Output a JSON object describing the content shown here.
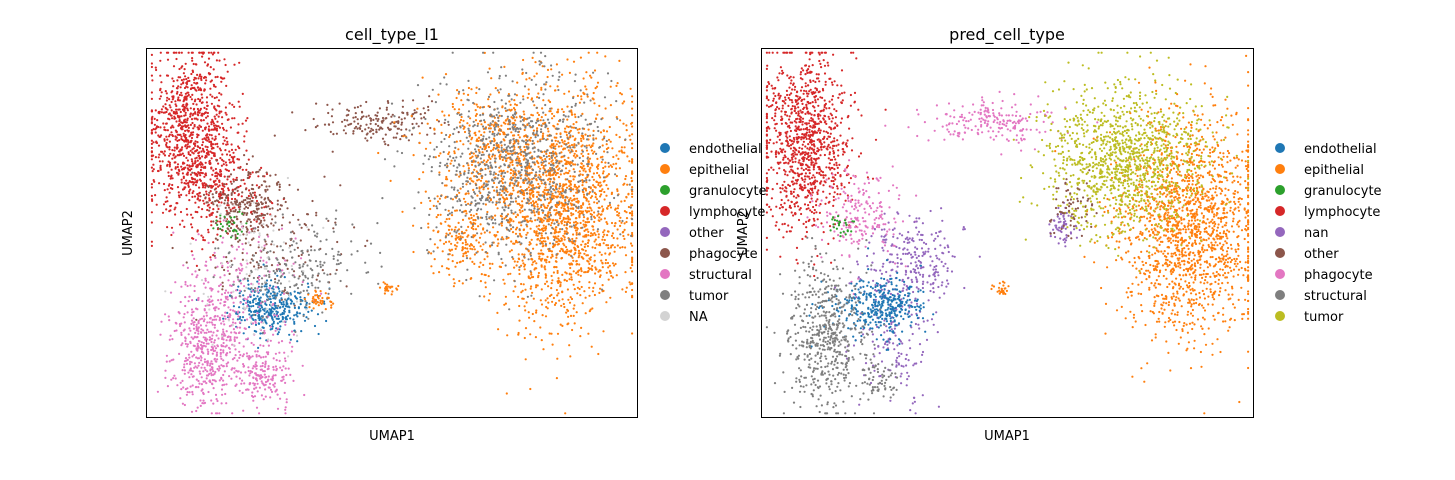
{
  "chart_data": [
    {
      "type": "scatter",
      "title": "cell_type_l1",
      "xlabel": "UMAP1",
      "ylabel": "UMAP2",
      "xlim": [
        0,
        100
      ],
      "ylim": [
        0,
        100
      ],
      "grid": false,
      "legend_position": "right-outside",
      "legend": [
        {
          "label": "endothelial",
          "color": "#1f77b4"
        },
        {
          "label": "epithelial",
          "color": "#ff7f0e"
        },
        {
          "label": "granulocyte",
          "color": "#2ca02c"
        },
        {
          "label": "lymphocyte",
          "color": "#d62728"
        },
        {
          "label": "other",
          "color": "#9467bd"
        },
        {
          "label": "phagocyte",
          "color": "#8c564b"
        },
        {
          "label": "structural",
          "color": "#e377c2"
        },
        {
          "label": "tumor",
          "color": "#7f7f7f"
        },
        {
          "label": "NA",
          "color": "#d3d3d3"
        }
      ],
      "clusters": [
        {
          "cat": "lymphocyte",
          "cx": 9,
          "cy": 78,
          "sx": 4.5,
          "sy": 11,
          "n": 900
        },
        {
          "cat": "lymphocyte",
          "cx": 15,
          "cy": 62,
          "sx": 5,
          "sy": 6,
          "n": 250
        },
        {
          "cat": "phagocyte",
          "cx": 20,
          "cy": 58,
          "sx": 4,
          "sy": 5,
          "n": 220
        },
        {
          "cat": "phagocyte",
          "cx": 48,
          "cy": 80,
          "sx": 7,
          "sy": 3,
          "n": 180
        },
        {
          "cat": "phagocyte",
          "cx": 25,
          "cy": 48,
          "sx": 8,
          "sy": 8,
          "n": 150
        },
        {
          "cat": "granulocyte",
          "cx": 17,
          "cy": 52,
          "sx": 1.5,
          "sy": 2,
          "n": 30
        },
        {
          "cat": "endothelial",
          "cx": 25,
          "cy": 30,
          "sx": 4,
          "sy": 3.5,
          "n": 350
        },
        {
          "cat": "structural",
          "cx": 12,
          "cy": 18,
          "sx": 3.5,
          "sy": 8,
          "n": 450
        },
        {
          "cat": "structural",
          "cx": 24,
          "cy": 12,
          "sx": 3,
          "sy": 5,
          "n": 200
        },
        {
          "cat": "structural",
          "cx": 18,
          "cy": 35,
          "sx": 6,
          "sy": 8,
          "n": 200
        },
        {
          "cat": "tumor",
          "cx": 30,
          "cy": 40,
          "sx": 8,
          "sy": 6,
          "n": 200
        },
        {
          "cat": "epithelial",
          "cx": 85,
          "cy": 55,
          "sx": 8,
          "sy": 15,
          "n": 1600
        },
        {
          "cat": "epithelial",
          "cx": 74,
          "cy": 72,
          "sx": 9,
          "sy": 10,
          "n": 600
        },
        {
          "cat": "epithelial",
          "cx": 64,
          "cy": 48,
          "sx": 3.5,
          "sy": 5,
          "n": 150
        },
        {
          "cat": "epithelial",
          "cx": 49,
          "cy": 35,
          "sx": 0.8,
          "sy": 0.8,
          "n": 25
        },
        {
          "cat": "epithelial",
          "cx": 35,
          "cy": 32,
          "sx": 1.5,
          "sy": 1.5,
          "n": 40
        },
        {
          "cat": "tumor",
          "cx": 75,
          "cy": 68,
          "sx": 9,
          "sy": 12,
          "n": 900
        },
        {
          "cat": "NA",
          "cx": 22,
          "cy": 40,
          "sx": 6,
          "sy": 10,
          "n": 80
        }
      ]
    },
    {
      "type": "scatter",
      "title": "pred_cell_type",
      "xlabel": "UMAP1",
      "ylabel": "UMAP2",
      "xlim": [
        0,
        100
      ],
      "ylim": [
        0,
        100
      ],
      "grid": false,
      "legend_position": "right-outside",
      "legend": [
        {
          "label": "endothelial",
          "color": "#1f77b4"
        },
        {
          "label": "epithelial",
          "color": "#ff7f0e"
        },
        {
          "label": "granulocyte",
          "color": "#2ca02c"
        },
        {
          "label": "lymphocyte",
          "color": "#d62728"
        },
        {
          "label": "nan",
          "color": "#9467bd"
        },
        {
          "label": "other",
          "color": "#8c564b"
        },
        {
          "label": "phagocyte",
          "color": "#e377c2"
        },
        {
          "label": "structural",
          "color": "#7f7f7f"
        },
        {
          "label": "tumor",
          "color": "#bcbd22"
        }
      ],
      "clusters": [
        {
          "cat": "lymphocyte",
          "cx": 9,
          "cy": 75,
          "sx": 4.5,
          "sy": 12,
          "n": 1000
        },
        {
          "cat": "phagocyte",
          "cx": 46,
          "cy": 80,
          "sx": 7,
          "sy": 3,
          "n": 200
        },
        {
          "cat": "phagocyte",
          "cx": 20,
          "cy": 55,
          "sx": 4,
          "sy": 6,
          "n": 200
        },
        {
          "cat": "nan",
          "cx": 31,
          "cy": 42,
          "sx": 5,
          "sy": 6,
          "n": 260
        },
        {
          "cat": "nan",
          "cx": 27,
          "cy": 20,
          "sx": 4,
          "sy": 8,
          "n": 140
        },
        {
          "cat": "nan",
          "cx": 61,
          "cy": 52,
          "sx": 1.5,
          "sy": 2.5,
          "n": 60
        },
        {
          "cat": "granulocyte",
          "cx": 17,
          "cy": 52,
          "sx": 1.5,
          "sy": 2,
          "n": 25
        },
        {
          "cat": "endothelial",
          "cx": 24,
          "cy": 30,
          "sx": 4.5,
          "sy": 4,
          "n": 380
        },
        {
          "cat": "structural",
          "cx": 13,
          "cy": 22,
          "sx": 4,
          "sy": 10,
          "n": 550
        },
        {
          "cat": "structural",
          "cx": 24,
          "cy": 10,
          "sx": 2,
          "sy": 3,
          "n": 60
        },
        {
          "cat": "epithelial",
          "cx": 87,
          "cy": 52,
          "sx": 7,
          "sy": 15,
          "n": 1600
        },
        {
          "cat": "epithelial",
          "cx": 49,
          "cy": 35,
          "sx": 0.8,
          "sy": 0.8,
          "n": 25
        },
        {
          "cat": "tumor",
          "cx": 74,
          "cy": 70,
          "sx": 8,
          "sy": 10,
          "n": 1200
        },
        {
          "cat": "other",
          "cx": 63,
          "cy": 56,
          "sx": 2.5,
          "sy": 4,
          "n": 60
        }
      ]
    }
  ]
}
